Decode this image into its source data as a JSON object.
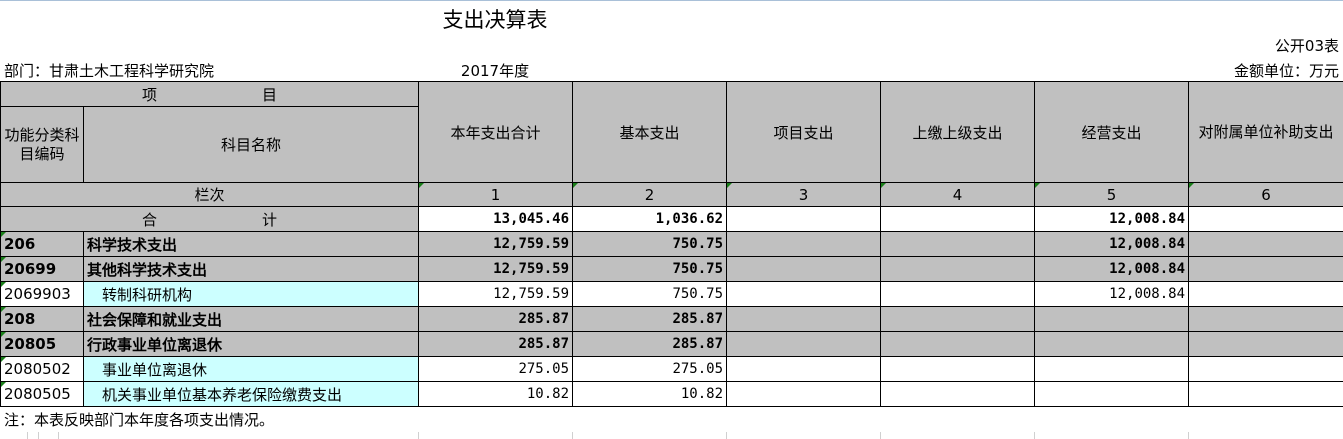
{
  "title": "支出决算表",
  "form_code": "公开03表",
  "department": "部门：甘肃土木工程科学研究院",
  "year": "2017年度",
  "unit": "金额单位：万元",
  "header": {
    "item": "项　　　　　　　目",
    "code": "功能分类科目编码",
    "name": "科目名称",
    "cols": [
      "本年支出合计",
      "基本支出",
      "项目支出",
      "上缴上级支出",
      "经营支出",
      "对附属单位补助支出"
    ],
    "col_index_label": "栏次",
    "col_index": [
      "1",
      "2",
      "3",
      "4",
      "5",
      "6"
    ]
  },
  "total": {
    "label": "合　　　　　　　计",
    "values": [
      "13,045.46",
      "1,036.62",
      "",
      "",
      "12,008.84",
      ""
    ]
  },
  "rows": [
    {
      "code": "206",
      "name": "科学技术支出",
      "level": "bold",
      "values": [
        "12,759.59",
        "750.75",
        "",
        "",
        "12,008.84",
        ""
      ]
    },
    {
      "code": "20699",
      "name": "其他科学技术支出",
      "level": "bold",
      "values": [
        "12,759.59",
        "750.75",
        "",
        "",
        "12,008.84",
        ""
      ]
    },
    {
      "code": "2069903",
      "name": "　转制科研机构",
      "level": "detail",
      "values": [
        "12,759.59",
        "750.75",
        "",
        "",
        "12,008.84",
        ""
      ]
    },
    {
      "code": "208",
      "name": "社会保障和就业支出",
      "level": "bold",
      "values": [
        "285.87",
        "285.87",
        "",
        "",
        "",
        ""
      ]
    },
    {
      "code": "20805",
      "name": "行政事业单位离退休",
      "level": "bold",
      "values": [
        "285.87",
        "285.87",
        "",
        "",
        "",
        ""
      ]
    },
    {
      "code": "2080502",
      "name": "　事业单位离退休",
      "level": "detail",
      "values": [
        "275.05",
        "275.05",
        "",
        "",
        "",
        ""
      ]
    },
    {
      "code": "2080505",
      "name": "　机关事业单位基本养老保险缴费支出",
      "level": "detail",
      "values": [
        "10.82",
        "10.82",
        "",
        "",
        "",
        ""
      ]
    }
  ],
  "note": "注：本表反映部门本年度各项支出情况。",
  "colors": {
    "header_gray": "#c0c0c0",
    "name_cyan": "#ccffff"
  }
}
